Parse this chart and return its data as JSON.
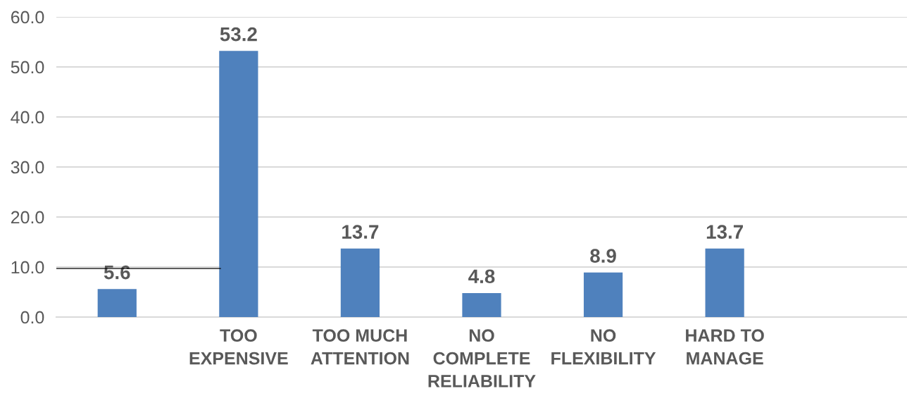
{
  "chart_data": {
    "type": "bar",
    "categories": [
      null,
      "TOO\nEXPENSIVE",
      "TOO MUCH\nATTENTION",
      "NO\nCOMPLETE\nRELIABILITY",
      "NO\nFLEXIBILITY",
      "HARD TO\nMANAGE",
      null
    ],
    "values": [
      5.6,
      53.2,
      13.7,
      4.8,
      8.9,
      13.7,
      null
    ],
    "color": "#4f81bd",
    "ylim": [
      0,
      60
    ],
    "yticks": [
      {
        "value": 0,
        "label": "0.0"
      },
      {
        "value": 10,
        "label": "10.0"
      },
      {
        "value": 20,
        "label": "20.0"
      },
      {
        "value": 30,
        "label": "30.0"
      },
      {
        "value": 40,
        "label": "40.0"
      },
      {
        "value": 50,
        "label": "50.0"
      },
      {
        "value": 60,
        "label": "60.0"
      }
    ],
    "grid": "y",
    "data_labels": true,
    "ref_lines": [
      {
        "axis": "y",
        "value": 9.7,
        "color": "#000000"
      }
    ]
  }
}
